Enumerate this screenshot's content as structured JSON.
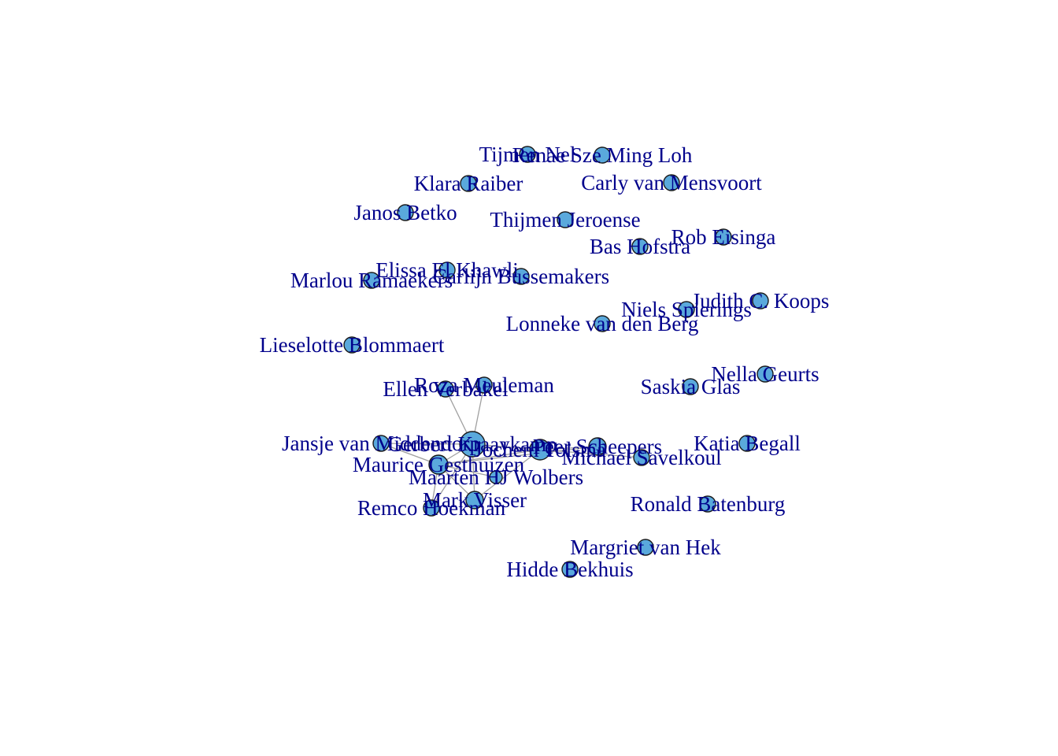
{
  "colors": {
    "node_fill": "#5aa9dc",
    "node_stroke": "#1a1a1a",
    "edge": "#a0a0a0",
    "label": "#00008b"
  },
  "nodes": [
    {
      "id": "n1",
      "label": "Tijmen Nel"
    },
    {
      "id": "n2",
      "label": "Renae Sze Ming Loh"
    },
    {
      "id": "n3",
      "label": "Klara Raiber"
    },
    {
      "id": "n4",
      "label": "Carly van Mensvoort"
    },
    {
      "id": "n5",
      "label": "Janos Betko"
    },
    {
      "id": "n6",
      "label": "Thijmen Jeroense"
    },
    {
      "id": "n7",
      "label": "Rob Eisinga"
    },
    {
      "id": "n8",
      "label": "Bas Hofstra"
    },
    {
      "id": "n9",
      "label": "Elissa El Khawli"
    },
    {
      "id": "n10",
      "label": "Marlou Ramaekers"
    },
    {
      "id": "n11",
      "label": "Carlijn Bussemakers"
    },
    {
      "id": "n12",
      "label": "Judith C. Koops"
    },
    {
      "id": "n13",
      "label": "Niels Spierings"
    },
    {
      "id": "n14",
      "label": "Lonneke van den Berg"
    },
    {
      "id": "n15",
      "label": "Lieselotte Blommaert"
    },
    {
      "id": "n16",
      "label": "Nella Geurts"
    },
    {
      "id": "n17",
      "label": "Roza Meuleman"
    },
    {
      "id": "n18",
      "label": "Ellen Verbakel"
    },
    {
      "id": "n19",
      "label": "Saskia Glas"
    },
    {
      "id": "n20",
      "label": "Jansje van Middendorp"
    },
    {
      "id": "n21",
      "label": "Gerbert Kraaykamp"
    },
    {
      "id": "n22",
      "label": "Jochem Tolsma"
    },
    {
      "id": "n23",
      "label": "Peer Scheepers"
    },
    {
      "id": "n24",
      "label": "Katia Begall"
    },
    {
      "id": "n25",
      "label": "Michael Savelkoul"
    },
    {
      "id": "n26",
      "label": "Maurice Gesthuizen"
    },
    {
      "id": "n27",
      "label": "Maarten HJ Wolbers"
    },
    {
      "id": "n28",
      "label": "Mark Visser"
    },
    {
      "id": "n29",
      "label": "Remco Hoekman"
    },
    {
      "id": "n30",
      "label": "Ronald Batenburg"
    },
    {
      "id": "n31",
      "label": "Margriet van Hek"
    },
    {
      "id": "n32",
      "label": "Hidde Bekhuis"
    }
  ],
  "edges": [
    [
      "n17",
      "n21"
    ],
    [
      "n18",
      "n21"
    ],
    [
      "n20",
      "n21"
    ],
    [
      "n20",
      "n26"
    ],
    [
      "n21",
      "n26"
    ],
    [
      "n21",
      "n22"
    ],
    [
      "n21",
      "n28"
    ],
    [
      "n21",
      "n29"
    ],
    [
      "n22",
      "n26"
    ],
    [
      "n22",
      "n23"
    ],
    [
      "n22",
      "n28"
    ],
    [
      "n23",
      "n26"
    ],
    [
      "n26",
      "n28"
    ],
    [
      "n26",
      "n29"
    ],
    [
      "n25",
      "n22"
    ],
    [
      "n27",
      "n26"
    ]
  ]
}
